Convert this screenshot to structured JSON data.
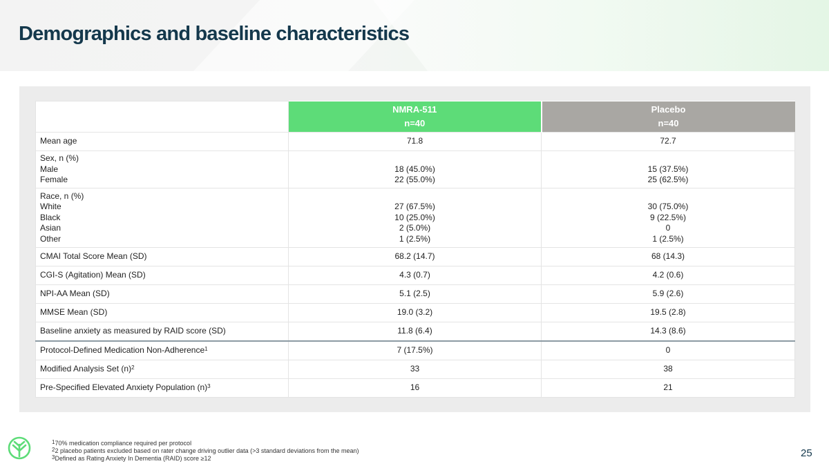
{
  "title": "Demographics and baseline characteristics",
  "columns": {
    "nmra": {
      "name": "NMRA-511",
      "n": "n=40"
    },
    "placebo": {
      "name": "Placebo",
      "n": "n=40"
    }
  },
  "rows": {
    "mean_age": {
      "label": "Mean age",
      "nmra": "71.8",
      "placebo": "72.7"
    },
    "sex": {
      "label": "Sex, n (%)",
      "male": {
        "label": "Male",
        "nmra": "18 (45.0%)",
        "placebo": "15 (37.5%)"
      },
      "female": {
        "label": "Female",
        "nmra": "22 (55.0%)",
        "placebo": "25 (62.5%)"
      }
    },
    "race": {
      "label": "Race, n (%)",
      "white": {
        "label": "White",
        "nmra": "27 (67.5%)",
        "placebo": "30 (75.0%)"
      },
      "black": {
        "label": "Black",
        "nmra": "10 (25.0%)",
        "placebo": "9 (22.5%)"
      },
      "asian": {
        "label": "Asian",
        "nmra": "2 (5.0%)",
        "placebo": "0"
      },
      "other": {
        "label": "Other",
        "nmra": "1 (2.5%)",
        "placebo": "1 (2.5%)"
      }
    },
    "cmai": {
      "label": "CMAI Total Score Mean (SD)",
      "nmra": "68.2 (14.7)",
      "placebo": "68 (14.3)"
    },
    "cgis": {
      "label": "CGI-S (Agitation) Mean (SD)",
      "nmra": "4.3 (0.7)",
      "placebo": "4.2 (0.6)"
    },
    "npiaa": {
      "label": "NPI-AA Mean (SD)",
      "nmra": "5.1 (2.5)",
      "placebo": "5.9 (2.6)"
    },
    "mmse": {
      "label": "MMSE Mean (SD)",
      "nmra": "19.0 (3.2)",
      "placebo": "19.5 (2.8)"
    },
    "raid": {
      "label": "Baseline anxiety as measured by RAID score (SD)",
      "nmra": "11.8 (6.4)",
      "placebo": "14.3 (8.6)"
    },
    "nonadherence": {
      "label": "Protocol-Defined Medication Non-Adherence",
      "sup": "1",
      "nmra": "7 (17.5%)",
      "placebo": "0"
    },
    "mas": {
      "label": "Modified Analysis Set (n)",
      "sup": "2",
      "nmra": "33",
      "placebo": "38"
    },
    "elevated": {
      "label": "Pre-Specified Elevated Anxiety Population (n)",
      "sup": "3",
      "nmra": "16",
      "placebo": "21"
    }
  },
  "footnotes": {
    "f1_num": "1",
    "f1": "70% medication compliance required per protocol",
    "f2_num": "2",
    "f2": "2 placebo patients excluded based on rater change driving outlier data (>3 standard deviations from the mean)",
    "f3_num": "3",
    "f3": "Defined as Rating Anxiety In Dementia (RAID) score ≥12"
  },
  "page_number": "25",
  "colors": {
    "title": "#14384c",
    "nmra_header": "#5ddc78",
    "placebo_header": "#a9a7a3",
    "panel": "#ececec"
  },
  "icons": {
    "logo": "leaf-logo-icon"
  }
}
